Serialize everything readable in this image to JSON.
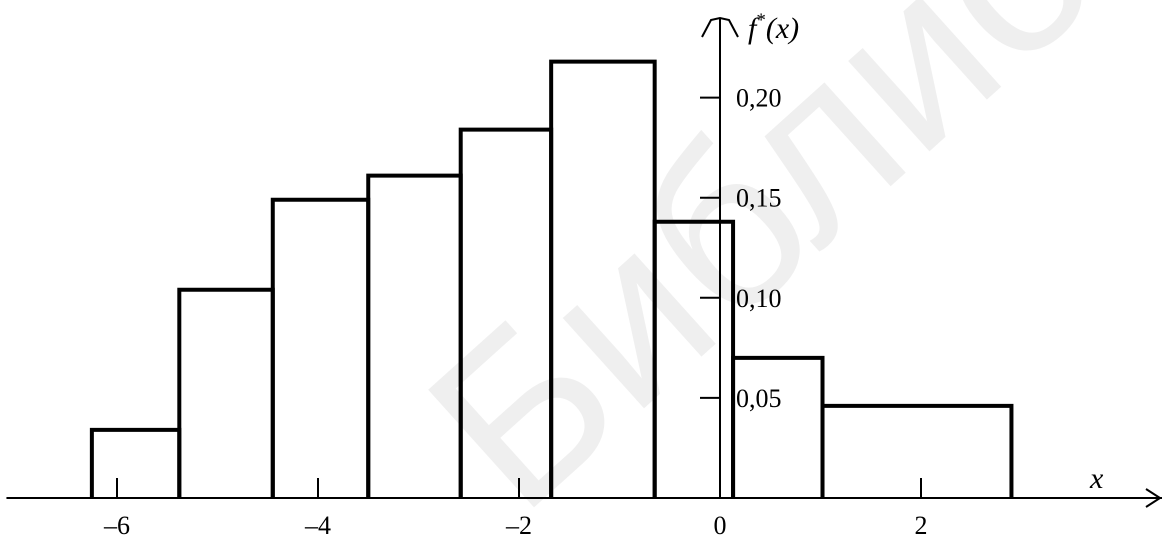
{
  "chart_data": {
    "type": "bar",
    "subtype": "histogram-step",
    "title": "",
    "xlabel": "x",
    "ylabel": "f*(x)",
    "ylabel_base": "f",
    "ylabel_sup": "*",
    "ylabel_rest": "(x)",
    "x_ticks": [
      -6,
      -4,
      -2,
      0,
      2
    ],
    "x_tick_labels": [
      "–6",
      "–4",
      "–2",
      "0",
      "2"
    ],
    "y_ticks": [
      0.05,
      0.1,
      0.15,
      0.2
    ],
    "y_tick_labels": [
      "0,05",
      "0,10",
      "0,15",
      "0,20"
    ],
    "xlim": [
      -7.1,
      4.4
    ],
    "ylim": [
      0,
      0.22
    ],
    "grid": false,
    "bins": [
      {
        "x0": -6.25,
        "x1": -5.38,
        "value": 0.034
      },
      {
        "x0": -5.38,
        "x1": -4.45,
        "value": 0.104
      },
      {
        "x0": -4.45,
        "x1": -3.5,
        "value": 0.149
      },
      {
        "x0": -3.5,
        "x1": -2.58,
        "value": 0.161
      },
      {
        "x0": -2.58,
        "x1": -1.68,
        "value": 0.184
      },
      {
        "x0": -1.68,
        "x1": -0.65,
        "value": 0.218
      },
      {
        "x0": -0.65,
        "x1": 0.13,
        "value": 0.138
      },
      {
        "x0": 0.13,
        "x1": 1.02,
        "value": 0.07
      },
      {
        "x0": 1.02,
        "x1": 2.9,
        "value": 0.046
      }
    ]
  },
  "watermark": {
    "text": "Библиотека БГУИР"
  }
}
